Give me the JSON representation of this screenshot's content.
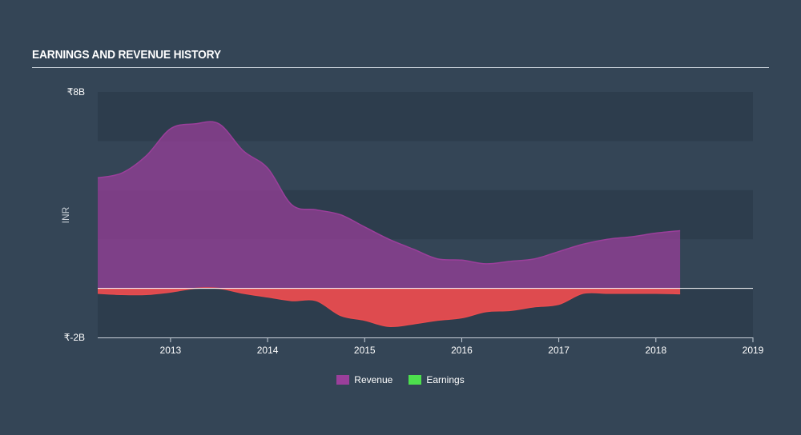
{
  "header": {
    "title": "EARNINGS AND REVENUE HISTORY"
  },
  "chart_data": {
    "type": "area",
    "title": "EARNINGS AND REVENUE HISTORY",
    "ylabel": "INR",
    "ylim": [
      -2,
      8
    ],
    "y_ticks": [
      {
        "value": 8,
        "label": "₹8B"
      },
      {
        "value": -2,
        "label": "₹-2B"
      }
    ],
    "xlim": [
      2012.25,
      2019
    ],
    "x_ticks": [
      {
        "value": 2013,
        "label": "2013"
      },
      {
        "value": 2014,
        "label": "2014"
      },
      {
        "value": 2015,
        "label": "2015"
      },
      {
        "value": 2016,
        "label": "2016"
      },
      {
        "value": 2017,
        "label": "2017"
      },
      {
        "value": 2018,
        "label": "2018"
      },
      {
        "value": 2019,
        "label": "2019"
      }
    ],
    "bands": [
      {
        "y0": 6,
        "y1": 8
      },
      {
        "y0": 2,
        "y1": 4
      },
      {
        "y0": -2,
        "y1": 0
      }
    ],
    "legend_placement": "bottom-center",
    "series": [
      {
        "name": "Revenue",
        "color": "#9b3f9b",
        "x": [
          2012.25,
          2012.5,
          2012.75,
          2013.0,
          2013.25,
          2013.5,
          2013.75,
          2014.0,
          2014.25,
          2014.5,
          2014.75,
          2015.0,
          2015.25,
          2015.5,
          2015.75,
          2016.0,
          2016.25,
          2016.5,
          2016.75,
          2017.0,
          2017.25,
          2017.5,
          2017.75,
          2018.0,
          2018.25
        ],
        "values": [
          4.5,
          4.7,
          5.4,
          6.5,
          6.7,
          6.7,
          5.6,
          4.9,
          3.4,
          3.2,
          3.0,
          2.5,
          2.0,
          1.6,
          1.2,
          1.15,
          1.0,
          1.1,
          1.2,
          1.5,
          1.8,
          2.0,
          2.1,
          2.25,
          2.35
        ]
      },
      {
        "name": "Earnings",
        "color": "#4de04d",
        "negative_color": "#e84c4f",
        "x": [
          2012.25,
          2012.5,
          2012.75,
          2013.0,
          2013.25,
          2013.5,
          2013.75,
          2014.0,
          2014.25,
          2014.5,
          2014.75,
          2015.0,
          2015.25,
          2015.5,
          2015.75,
          2016.0,
          2016.25,
          2016.5,
          2016.75,
          2017.0,
          2017.25,
          2017.5,
          2017.75,
          2018.0,
          2018.25
        ],
        "values": [
          -0.2,
          -0.25,
          -0.25,
          -0.15,
          0.0,
          0.0,
          -0.2,
          -0.35,
          -0.5,
          -0.5,
          -1.1,
          -1.3,
          -1.55,
          -1.45,
          -1.3,
          -1.2,
          -0.95,
          -0.9,
          -0.75,
          -0.65,
          -0.2,
          -0.2,
          -0.2,
          -0.2,
          -0.22
        ]
      }
    ]
  },
  "legend": {
    "items": [
      {
        "label": "Revenue",
        "color": "#9b3f9b"
      },
      {
        "label": "Earnings",
        "color": "#4de04d"
      }
    ]
  }
}
